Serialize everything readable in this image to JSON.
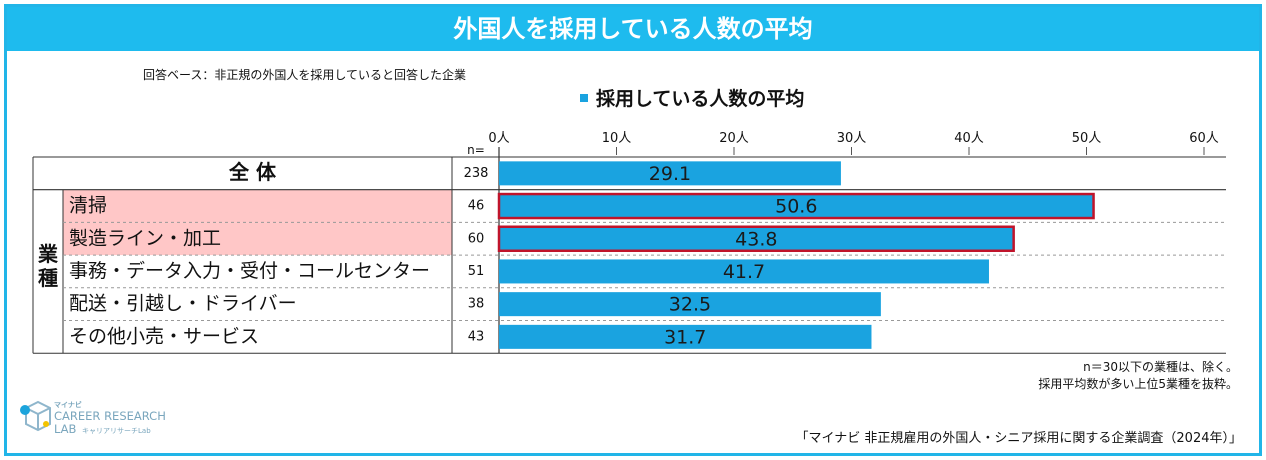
{
  "title": "外国人を採用している人数の平均",
  "base_note": "回答ベース：非正規の外国人を採用していると回答した企業",
  "legend_label": "採用している人数の平均",
  "n_label": "n=",
  "group_label": "業種",
  "footnotes": [
    "n＝30以下の業種は、除く。",
    "採用平均数が多い上位5業種を抜粋。"
  ],
  "source": "「マイナビ 非正規雇用の外国人・シニア採用に関する企業調査（2024年）」",
  "logo": {
    "small": "マイナビ",
    "main1": "CAREER RESEARCH",
    "main2": "LAB",
    "sub": "キャリアリサーチLab"
  },
  "colors": {
    "bar": "#1aa3e0",
    "highlight_fill": "#ffc7c7",
    "highlight_border": "#c0142b",
    "title_bg": "#1ebbee"
  },
  "chart_data": {
    "type": "bar",
    "orientation": "horizontal",
    "title": "外国人を採用している人数の平均",
    "series_name": "採用している人数の平均",
    "xlim": [
      0,
      60
    ],
    "ticks": [
      {
        "value": 0,
        "label": "0人"
      },
      {
        "value": 10,
        "label": "10人"
      },
      {
        "value": 20,
        "label": "20人"
      },
      {
        "value": 30,
        "label": "30人"
      },
      {
        "value": 40,
        "label": "40人"
      },
      {
        "value": 50,
        "label": "50人"
      },
      {
        "value": 60,
        "label": "60人"
      }
    ],
    "rows": [
      {
        "label": "全 体",
        "n": "238",
        "value": 29.1,
        "value_label": "29.1",
        "highlight": false,
        "total": true
      },
      {
        "label": "清掃",
        "n": "46",
        "value": 50.6,
        "value_label": "50.6",
        "highlight": true,
        "total": false
      },
      {
        "label": "製造ライン・加工",
        "n": "60",
        "value": 43.8,
        "value_label": "43.8",
        "highlight": true,
        "total": false
      },
      {
        "label": "事務・データ入力・受付・コールセンター",
        "n": "51",
        "value": 41.7,
        "value_label": "41.7",
        "highlight": false,
        "total": false
      },
      {
        "label": "配送・引越し・ドライバー",
        "n": "38",
        "value": 32.5,
        "value_label": "32.5",
        "highlight": false,
        "total": false
      },
      {
        "label": "その他小売・サービス",
        "n": "43",
        "value": 31.7,
        "value_label": "31.7",
        "highlight": false,
        "total": false
      }
    ]
  }
}
